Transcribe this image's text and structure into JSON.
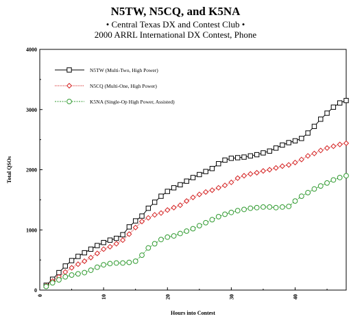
{
  "header": {
    "title": "N5TW, N5CQ, and K5NA",
    "subtitle1": "• Central Texas DX and Contest Club •",
    "subtitle2": "2000 ARRL International DX Contest, Phone"
  },
  "chart_data": {
    "type": "line",
    "xlabel": "Hours into Contest",
    "ylabel": "Total QSOs",
    "xlim": [
      0,
      48
    ],
    "ylim": [
      0,
      4000
    ],
    "x_ticks": [
      0,
      10,
      20,
      30,
      40
    ],
    "y_ticks": [
      0,
      1000,
      2000,
      3000,
      4000
    ],
    "grid": false,
    "legend_position": "top-left",
    "x": [
      1,
      2,
      3,
      4,
      5,
      6,
      7,
      8,
      9,
      10,
      11,
      12,
      13,
      14,
      15,
      16,
      17,
      18,
      19,
      20,
      21,
      22,
      23,
      24,
      25,
      26,
      27,
      28,
      29,
      30,
      31,
      32,
      33,
      34,
      35,
      36,
      37,
      38,
      39,
      40,
      41,
      42,
      43,
      44,
      45,
      46,
      47,
      48
    ],
    "series": [
      {
        "name": "N5TW (Multi-Two, High Power)",
        "color": "#000000",
        "marker": "square",
        "values": [
          80,
          180,
          290,
          400,
          490,
          560,
          620,
          680,
          740,
          790,
          830,
          860,
          920,
          1050,
          1150,
          1230,
          1360,
          1460,
          1560,
          1640,
          1700,
          1750,
          1810,
          1870,
          1920,
          1970,
          2020,
          2100,
          2160,
          2190,
          2200,
          2210,
          2230,
          2250,
          2280,
          2310,
          2360,
          2410,
          2450,
          2480,
          2520,
          2610,
          2720,
          2840,
          2940,
          3040,
          3110,
          3150
        ]
      },
      {
        "name": "N5CQ (Multi-One, High Power)",
        "color": "#d42020",
        "marker": "diamond",
        "values": [
          70,
          150,
          220,
          300,
          370,
          430,
          480,
          540,
          610,
          680,
          720,
          770,
          830,
          930,
          1040,
          1140,
          1200,
          1250,
          1280,
          1330,
          1370,
          1410,
          1480,
          1540,
          1590,
          1630,
          1660,
          1700,
          1740,
          1790,
          1860,
          1900,
          1930,
          1950,
          1980,
          2000,
          2030,
          2060,
          2080,
          2120,
          2170,
          2230,
          2270,
          2320,
          2360,
          2390,
          2420,
          2440
        ]
      },
      {
        "name": "K5NA (Single-Op High Power, Assisted)",
        "color": "#2f9a2f",
        "marker": "circle",
        "values": [
          60,
          120,
          170,
          220,
          250,
          270,
          290,
          330,
          380,
          420,
          440,
          450,
          450,
          460,
          480,
          580,
          700,
          770,
          840,
          880,
          900,
          940,
          980,
          1020,
          1070,
          1120,
          1170,
          1220,
          1260,
          1290,
          1320,
          1340,
          1360,
          1370,
          1380,
          1380,
          1370,
          1380,
          1390,
          1480,
          1560,
          1620,
          1680,
          1730,
          1780,
          1830,
          1870,
          1900
        ]
      }
    ]
  }
}
